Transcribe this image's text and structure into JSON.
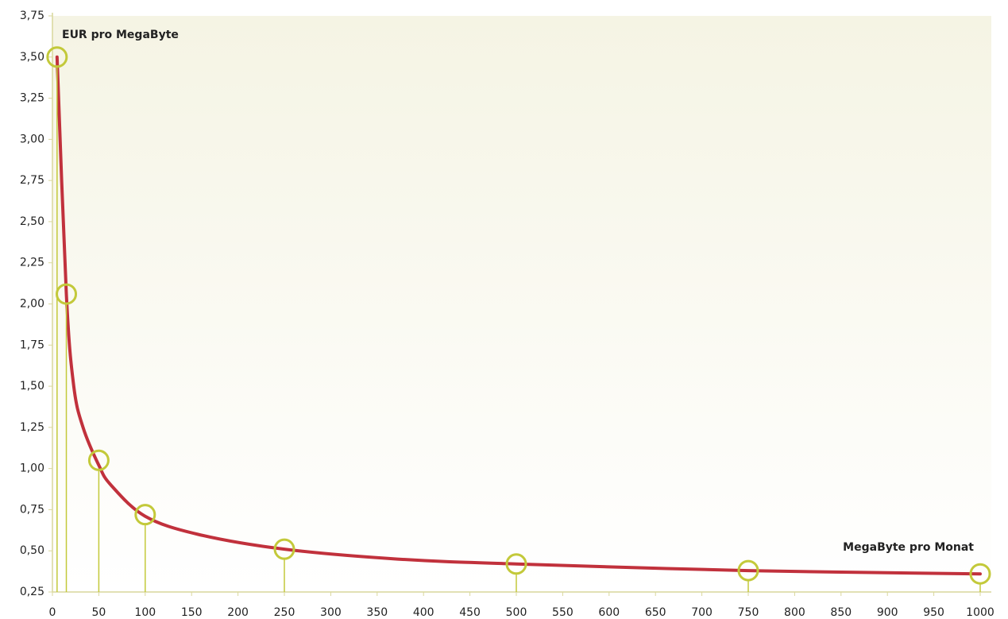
{
  "chart_data": {
    "type": "line",
    "annotations": [
      "EUR pro MegaByte",
      "MegaByte pro Monat"
    ],
    "xlim": [
      0,
      1000
    ],
    "ylim": [
      0.25,
      3.75
    ],
    "xticks": [
      0,
      50,
      100,
      150,
      200,
      250,
      300,
      350,
      400,
      450,
      500,
      550,
      600,
      650,
      700,
      750,
      800,
      850,
      900,
      950,
      1000
    ],
    "yticks": [
      {
        "value": 0.25,
        "label": "0,25"
      },
      {
        "value": 0.5,
        "label": "0,50"
      },
      {
        "value": 0.75,
        "label": "0,75"
      },
      {
        "value": 1.0,
        "label": "1,00"
      },
      {
        "value": 1.25,
        "label": "1,25"
      },
      {
        "value": 1.5,
        "label": "1,50"
      },
      {
        "value": 1.75,
        "label": "1,75"
      },
      {
        "value": 2.0,
        "label": "2,00"
      },
      {
        "value": 2.25,
        "label": "2,25"
      },
      {
        "value": 2.5,
        "label": "2,50"
      },
      {
        "value": 2.75,
        "label": "2,75"
      },
      {
        "value": 3.0,
        "label": "3,00"
      },
      {
        "value": 3.25,
        "label": "3,25"
      },
      {
        "value": 3.5,
        "label": "3,50"
      },
      {
        "value": 3.75,
        "label": "3,75"
      }
    ],
    "series": [
      {
        "color": "#c1313c",
        "x": [
          5,
          15,
          23,
          33,
          50,
          63,
          100,
          157,
          250,
          372,
          500,
          750,
          1000
        ],
        "values": [
          3.5,
          2.06,
          1.5,
          1.25,
          1.02,
          0.9,
          0.71,
          0.6,
          0.51,
          0.45,
          0.42,
          0.38,
          0.36
        ]
      },
      {
        "color": "#c3c93a",
        "markers": true,
        "x": [
          5,
          15,
          50,
          100,
          250,
          500,
          750,
          1000
        ],
        "values": [
          3.5,
          2.06,
          1.05,
          0.72,
          0.51,
          0.42,
          0.38,
          0.36
        ]
      }
    ]
  }
}
